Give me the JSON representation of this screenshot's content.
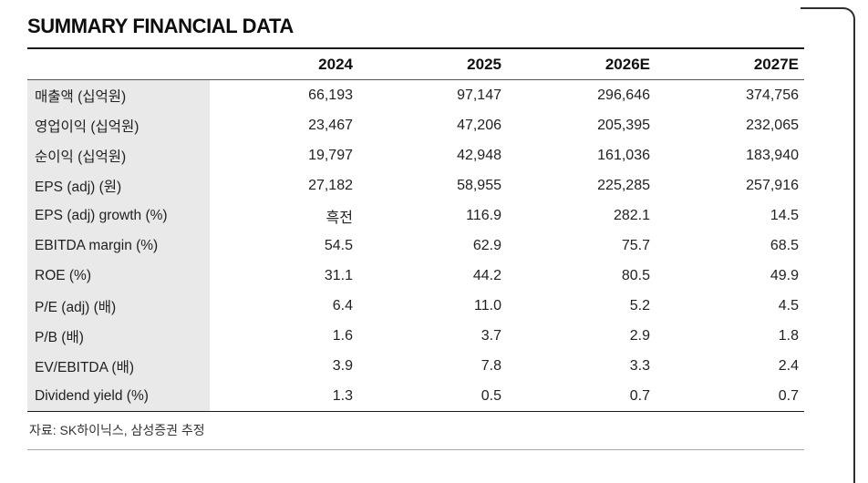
{
  "page": {
    "title": "SUMMARY FINANCIAL DATA",
    "source_note": "자료: SK하이닉스, 삼성증권 추정"
  },
  "chart_data": {
    "type": "table",
    "title": "SUMMARY FINANCIAL DATA",
    "columns": [
      "2024",
      "2025",
      "2026E",
      "2027E"
    ],
    "rows": [
      {
        "label": "매출액 (십억원)",
        "values": [
          "66,193",
          "97,147",
          "296,646",
          "374,756"
        ]
      },
      {
        "label": "영업이익 (십억원)",
        "values": [
          "23,467",
          "47,206",
          "205,395",
          "232,065"
        ]
      },
      {
        "label": "순이익 (십억원)",
        "values": [
          "19,797",
          "42,948",
          "161,036",
          "183,940"
        ]
      },
      {
        "label": "EPS (adj) (원)",
        "values": [
          "27,182",
          "58,955",
          "225,285",
          "257,916"
        ]
      },
      {
        "label": "EPS (adj) growth (%)",
        "values": [
          "흑전",
          "116.9",
          "282.1",
          "14.5"
        ]
      },
      {
        "label": "EBITDA margin (%)",
        "values": [
          "54.5",
          "62.9",
          "75.7",
          "68.5"
        ]
      },
      {
        "label": "ROE (%)",
        "values": [
          "31.1",
          "44.2",
          "80.5",
          "49.9"
        ]
      },
      {
        "label": "P/E (adj) (배)",
        "values": [
          "6.4",
          "11.0",
          "5.2",
          "4.5"
        ]
      },
      {
        "label": "P/B (배)",
        "values": [
          "1.6",
          "3.7",
          "2.9",
          "1.8"
        ]
      },
      {
        "label": "EV/EBITDA (배)",
        "values": [
          "3.9",
          "7.8",
          "3.3",
          "2.4"
        ]
      },
      {
        "label": "Dividend yield (%)",
        "values": [
          "1.3",
          "0.5",
          "0.7",
          "0.7"
        ]
      }
    ],
    "source": "자료: SK하이닉스, 삼성증권 추정",
    "colors": {
      "label_column_bg": "#e9e9e9",
      "border_heavy": "#1b1b1b",
      "text": "#222222"
    }
  }
}
